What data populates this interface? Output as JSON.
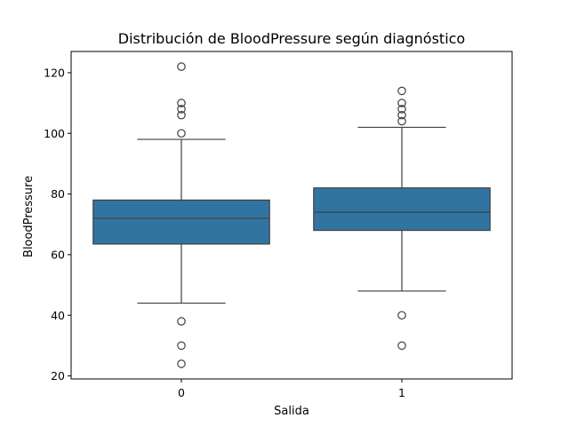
{
  "chart_data": {
    "type": "box",
    "title": "Distribución de BloodPressure según diagnóstico",
    "xlabel": "Salida",
    "ylabel": "BloodPressure",
    "categories": [
      "0",
      "1"
    ],
    "ylim": [
      19,
      127
    ],
    "yticks": [
      20,
      40,
      60,
      80,
      100,
      120
    ],
    "grid": false,
    "box_color": "#3274a1",
    "line_color": "#3f3f3f",
    "boxes": [
      {
        "category": "0",
        "whisker_low": 44,
        "q1": 63.5,
        "median": 72,
        "q3": 78,
        "whisker_high": 98,
        "outliers": [
          122,
          110,
          108,
          106,
          100,
          38,
          30,
          24
        ]
      },
      {
        "category": "1",
        "whisker_low": 48,
        "q1": 68,
        "median": 74,
        "q3": 82,
        "whisker_high": 102,
        "outliers": [
          114,
          110,
          108,
          106,
          104,
          40,
          30
        ]
      }
    ]
  }
}
